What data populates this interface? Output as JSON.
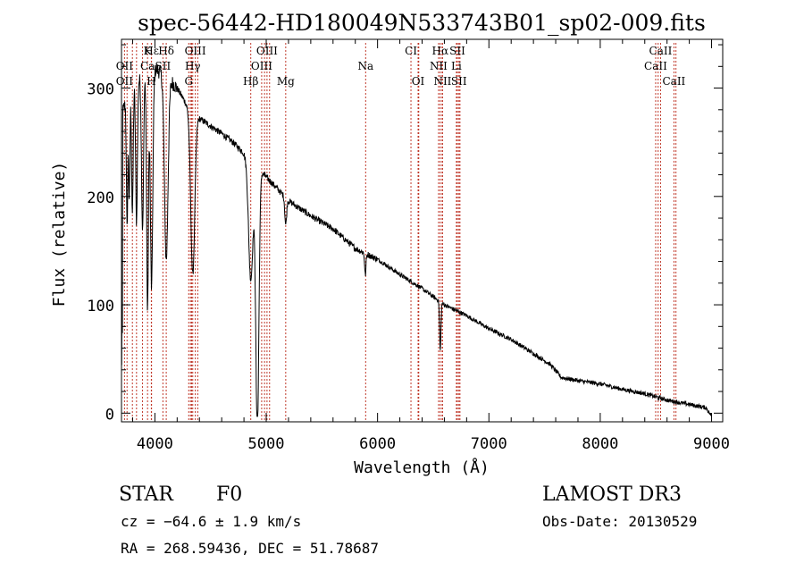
{
  "chart_data": {
    "type": "line",
    "title": "spec-56442-HD180049N533743B01_sp02-009.fits",
    "xlabel": "Wavelength (Å)",
    "ylabel": "Flux (relative)",
    "xlim": [
      3700,
      9100
    ],
    "ylim": [
      -8,
      345
    ],
    "xticks": [
      {
        "value": 4000,
        "label": "4000"
      },
      {
        "value": 5000,
        "label": "5000"
      },
      {
        "value": 6000,
        "label": "6000"
      },
      {
        "value": 7000,
        "label": "7000"
      },
      {
        "value": 8000,
        "label": "8000"
      },
      {
        "value": 9000,
        "label": "9000"
      }
    ],
    "yticks": [
      {
        "value": 0,
        "label": "0"
      },
      {
        "value": 100,
        "label": "100"
      },
      {
        "value": 200,
        "label": "200"
      },
      {
        "value": 300,
        "label": "300"
      }
    ],
    "continuum": {
      "x": [
        3700,
        3800,
        3900,
        4000,
        4100,
        4200,
        4300,
        4400,
        4500,
        4600,
        4700,
        4800,
        5000,
        5200,
        5400,
        5600,
        5800,
        6000,
        6200,
        6400,
        6600,
        6800,
        7000,
        7200,
        7400,
        7550,
        7650,
        7800,
        8000,
        8200,
        8400,
        8600,
        8800,
        8950,
        9000
      ],
      "y": [
        275,
        305,
        312,
        318,
        312,
        300,
        282,
        272,
        265,
        258,
        250,
        240,
        218,
        196,
        182,
        170,
        152,
        142,
        128,
        115,
        100,
        90,
        78,
        68,
        55,
        45,
        33,
        30,
        27,
        22,
        18,
        12,
        8,
        5,
        -3
      ]
    },
    "absorption_lines": [
      {
        "center": 3750,
        "depth": 120,
        "width": 6
      },
      {
        "center": 3770,
        "depth": 100,
        "width": 6
      },
      {
        "center": 3798,
        "depth": 120,
        "width": 7
      },
      {
        "center": 3835,
        "depth": 130,
        "width": 8
      },
      {
        "center": 3889,
        "depth": 140,
        "width": 9
      },
      {
        "center": 3934,
        "depth": 220,
        "width": 8
      },
      {
        "center": 3970,
        "depth": 200,
        "width": 11
      },
      {
        "center": 4102,
        "depth": 170,
        "width": 16
      },
      {
        "center": 4340,
        "depth": 150,
        "width": 18
      },
      {
        "center": 4861,
        "depth": 110,
        "width": 20
      },
      {
        "center": 4920,
        "depth": 245,
        "width": 14
      },
      {
        "center": 5175,
        "depth": 25,
        "width": 8
      },
      {
        "center": 5890,
        "depth": 20,
        "width": 6
      },
      {
        "center": 6563,
        "depth": 45,
        "width": 6
      }
    ],
    "line_markers": {
      "row1": [
        {
          "label": "Hε",
          "wavelength": 3970
        },
        {
          "label": "K",
          "wavelength": 3934
        },
        {
          "label": "Hδ",
          "wavelength": 4102
        },
        {
          "label": "OIII",
          "wavelength": 4363
        },
        {
          "label": "OIII",
          "wavelength": 5007
        },
        {
          "label": "CI",
          "wavelength": 6300
        },
        {
          "label": "Hα",
          "wavelength": 6563
        },
        {
          "label": "SII",
          "wavelength": 6717
        },
        {
          "label": "CaII",
          "wavelength": 8542
        }
      ],
      "row2": [
        {
          "label": "OII",
          "wavelength": 3727
        },
        {
          "label": "Ca",
          "wavelength": 3934
        },
        {
          "label": "SII",
          "wavelength": 4072
        },
        {
          "label": "Hγ",
          "wavelength": 4340
        },
        {
          "label": "OIII",
          "wavelength": 4959
        },
        {
          "label": "Na",
          "wavelength": 5893
        },
        {
          "label": "NII",
          "wavelength": 6548
        },
        {
          "label": "Li",
          "wavelength": 6708
        },
        {
          "label": "CaII",
          "wavelength": 8498
        }
      ],
      "row3": [
        {
          "label": "OII",
          "wavelength": 3727
        },
        {
          "label": "H",
          "wavelength": 3968
        },
        {
          "label": "G",
          "wavelength": 4304
        },
        {
          "label": "Hβ",
          "wavelength": 4861
        },
        {
          "label": "Mg",
          "wavelength": 5175
        },
        {
          "label": "OI",
          "wavelength": 6364
        },
        {
          "label": "NII",
          "wavelength": 6584
        },
        {
          "label": "SII",
          "wavelength": 6731
        },
        {
          "label": "CaII",
          "wavelength": 8662
        }
      ],
      "unlabeled": [
        3750,
        3798,
        3835,
        3889,
        4320,
        4330,
        4385,
        4985,
        5030,
        6370,
        6580,
        6740,
        8520,
        8680
      ]
    }
  },
  "info": {
    "object_class": "STAR",
    "subclass": "F0",
    "survey": "LAMOST DR3",
    "cz": "cz = −64.6 ± 1.9 km/s",
    "obs_date": "Obs-Date: 20130529",
    "coords": "RA = 268.59436, DEC =  51.78687"
  }
}
